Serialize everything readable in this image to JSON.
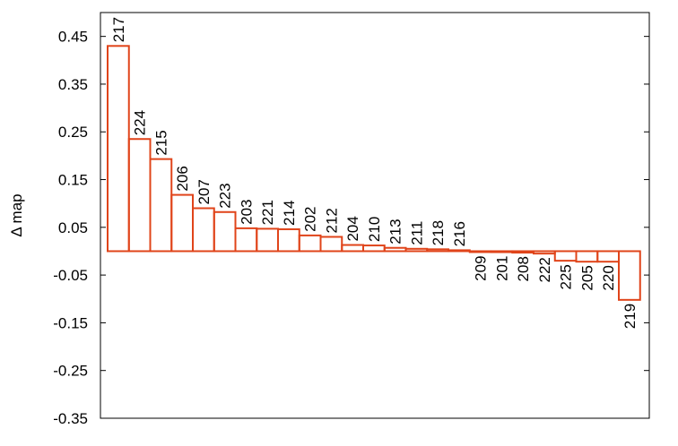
{
  "chart_data": {
    "type": "bar",
    "title": "",
    "xlabel": "",
    "ylabel": "Δ map",
    "ylim": [
      -0.35,
      0.5
    ],
    "yticks": [
      0.45,
      0.35,
      0.25,
      0.15,
      0.05,
      -0.05,
      -0.15,
      -0.25,
      -0.35
    ],
    "ytick_labels": [
      "0.45",
      "0.35",
      "0.25",
      "0.15",
      "0.05",
      "-0.05",
      "-0.15",
      "-0.25",
      "-0.35"
    ],
    "baseline": 0.0,
    "grid": false,
    "bar_color": "#e0441a",
    "categories": [
      "217",
      "224",
      "215",
      "206",
      "207",
      "223",
      "203",
      "221",
      "214",
      "202",
      "212",
      "204",
      "210",
      "213",
      "211",
      "218",
      "216",
      "209",
      "201",
      "208",
      "222",
      "225",
      "205",
      "220",
      "219"
    ],
    "values": [
      0.43,
      0.235,
      0.193,
      0.118,
      0.09,
      0.082,
      0.048,
      0.047,
      0.046,
      0.033,
      0.03,
      0.013,
      0.012,
      0.007,
      0.005,
      0.004,
      0.002,
      -0.001,
      -0.002,
      -0.003,
      -0.005,
      -0.02,
      -0.022,
      -0.022,
      -0.102
    ]
  }
}
